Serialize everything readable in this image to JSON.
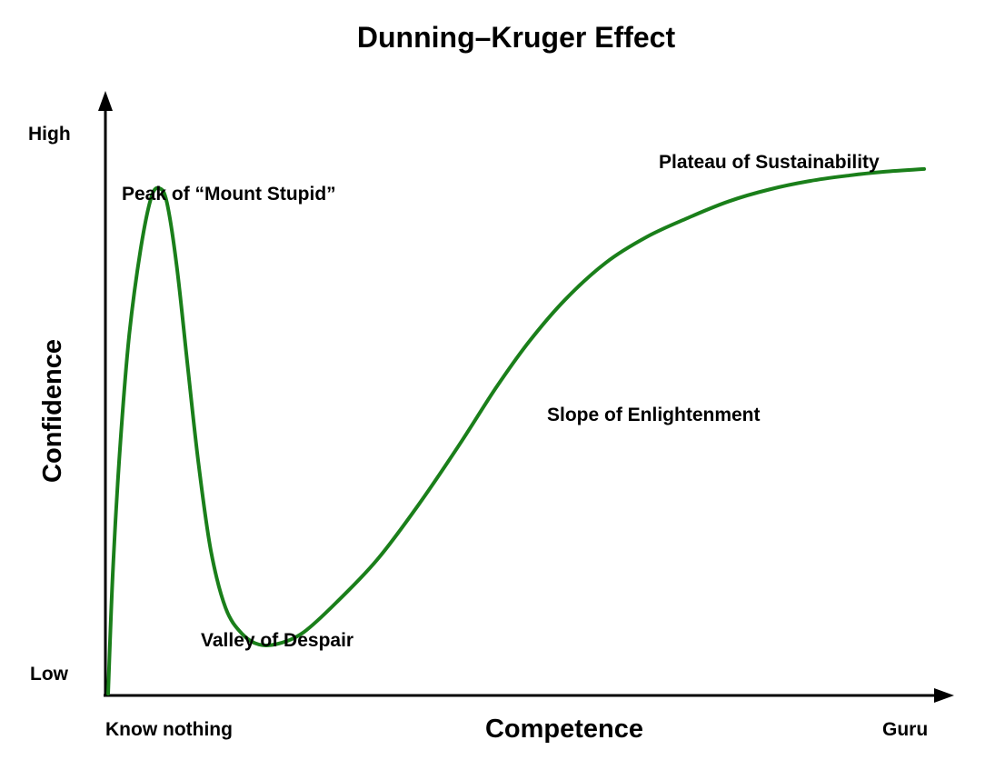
{
  "chart_data": {
    "type": "line",
    "title": "Dunning–Kruger Effect",
    "xlabel": "Competence",
    "ylabel": "Confidence",
    "xlim": [
      0,
      100
    ],
    "ylim": [
      0,
      100
    ],
    "x_tick_labels": {
      "start": "Know nothing",
      "end": "Guru"
    },
    "y_tick_labels": {
      "start": "Low",
      "end": "High"
    },
    "grid": false,
    "line_color": "#1a7f1a",
    "series": [
      {
        "x": [
          0.0,
          0.6,
          1.5,
          2.6,
          4.0,
          5.3,
          6.3,
          7.2,
          8.4,
          9.7,
          11.1,
          12.6,
          14.4,
          16.4,
          18.5,
          21.0,
          24.0,
          28.0,
          33.0,
          38.0,
          43.0,
          47.5,
          51.5,
          56.0,
          61.0,
          66.0,
          71.0,
          76.0,
          81.0,
          86.0,
          91.0,
          95.0,
          100.0
        ],
        "y": [
          0.0,
          22.0,
          44.0,
          63.0,
          78.0,
          87.0,
          88.5,
          86.0,
          75.0,
          58.0,
          40.0,
          25.0,
          15.0,
          10.5,
          8.6,
          8.8,
          10.8,
          16.0,
          23.5,
          33.0,
          43.5,
          53.5,
          61.5,
          69.0,
          75.5,
          80.0,
          83.3,
          86.2,
          88.3,
          89.8,
          90.8,
          91.4,
          91.9
        ]
      }
    ],
    "annotations": [
      {
        "text": "Peak of “Mount Stupid”",
        "x": 6.3,
        "y": 88.5
      },
      {
        "text": "Valley of Despair",
        "x": 18.5,
        "y": 8.6
      },
      {
        "text": "Slope of Enlightenment",
        "x": 56.0,
        "y": 69.0
      },
      {
        "text": "Plateau of Sustainability",
        "x": 95.0,
        "y": 91.4
      }
    ]
  }
}
